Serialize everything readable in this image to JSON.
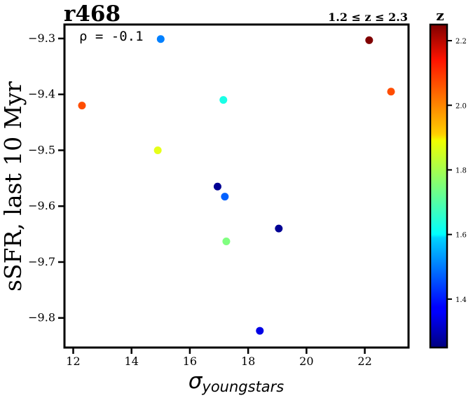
{
  "chart_data": {
    "type": "scatter",
    "title": "r468",
    "subtitle": "1.2 ≤ z ≤ 2.3",
    "annotation": "ρ = -0.1",
    "xlabel_base": "σ",
    "xlabel_sub": "youngstars",
    "ylabel": "sSFR, last 10 Myr",
    "xlim": [
      11.7,
      23.5
    ],
    "ylim": [
      -9.853,
      -9.275
    ],
    "x_ticks": [
      12,
      14,
      16,
      18,
      20,
      22
    ],
    "y_ticks": [
      -9.3,
      -9.4,
      -9.5,
      -9.6,
      -9.7,
      -9.8
    ],
    "y_tick_labels": [
      "−9.3",
      "−9.4",
      "−9.5",
      "−9.6",
      "−9.7",
      "−9.8"
    ],
    "grid": false,
    "colorbar": {
      "label": "z",
      "range": [
        1.25,
        2.25
      ],
      "ticks": [
        1.4,
        1.6,
        1.8,
        2.0,
        2.2
      ],
      "tick_labels": [
        "1.4",
        "1.6",
        "1.8",
        "2.0",
        "2.2"
      ],
      "colormap": "jet"
    },
    "points": [
      {
        "x": 15.0,
        "y": -9.301,
        "z": 1.5
      },
      {
        "x": 22.15,
        "y": -9.303,
        "z": 2.25
      },
      {
        "x": 22.9,
        "y": -9.395,
        "z": 2.05
      },
      {
        "x": 12.3,
        "y": -9.42,
        "z": 2.05
      },
      {
        "x": 17.15,
        "y": -9.41,
        "z": 1.65
      },
      {
        "x": 14.9,
        "y": -9.5,
        "z": 1.85
      },
      {
        "x": 16.95,
        "y": -9.565,
        "z": 1.27
      },
      {
        "x": 17.2,
        "y": -9.583,
        "z": 1.47
      },
      {
        "x": 19.05,
        "y": -9.64,
        "z": 1.27
      },
      {
        "x": 17.25,
        "y": -9.663,
        "z": 1.75
      },
      {
        "x": 18.4,
        "y": -9.823,
        "z": 1.35
      }
    ]
  }
}
